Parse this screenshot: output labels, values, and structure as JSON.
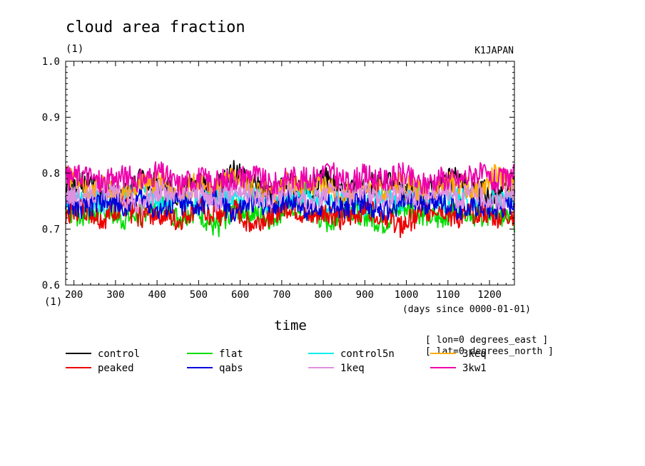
{
  "chart_data": {
    "type": "line",
    "title": "cloud area fraction",
    "units": "(1)",
    "ylabel_unit": "(1)",
    "dataset_label": "K1JAPAN",
    "xlabel": "time",
    "x_units": "(days since 0000-01-01)",
    "xlim": [
      180,
      1260
    ],
    "ylim": [
      0.6,
      1.0
    ],
    "x_ticks": [
      200,
      300,
      400,
      500,
      600,
      700,
      800,
      900,
      1000,
      1100,
      1200
    ],
    "x_tick_labels": [
      "200",
      "300",
      "400",
      "500",
      "600",
      "700",
      "800",
      "900",
      "1000",
      "1100",
      "1200"
    ],
    "y_ticks": [
      0.6,
      0.7,
      0.8,
      0.9,
      1.0
    ],
    "y_tick_labels": [
      "0.6",
      "0.7",
      "0.8",
      "0.9",
      "1.0"
    ],
    "grid": false,
    "legend_position": "bottom",
    "annotations": [
      "[ lon=0 degrees_east ]",
      "[ lat=0 degrees_north ]"
    ],
    "series": [
      {
        "name": "control",
        "color": "#000000",
        "mean": 0.768,
        "amplitude": 0.042,
        "values": [
          0.772,
          0.781,
          0.769,
          0.758,
          0.79,
          0.776,
          0.763,
          0.785,
          0.771,
          0.802,
          0.78,
          0.76,
          0.779,
          0.768,
          0.791,
          0.762,
          0.774,
          0.788,
          0.766,
          0.757,
          0.778,
          0.793,
          0.77,
          0.761,
          0.784
        ]
      },
      {
        "name": "flat",
        "color": "#00dd00",
        "mean": 0.728,
        "amplitude": 0.038,
        "values": [
          0.731,
          0.722,
          0.74,
          0.715,
          0.728,
          0.745,
          0.719,
          0.733,
          0.7,
          0.738,
          0.726,
          0.717,
          0.742,
          0.73,
          0.711,
          0.736,
          0.724,
          0.708,
          0.739,
          0.727,
          0.714,
          0.743,
          0.721,
          0.732,
          0.712
        ]
      },
      {
        "name": "control5n",
        "color": "#00eeee",
        "mean": 0.752,
        "amplitude": 0.035,
        "values": [
          0.751,
          0.763,
          0.744,
          0.758,
          0.77,
          0.747,
          0.756,
          0.741,
          0.765,
          0.752,
          0.76,
          0.738,
          0.754,
          0.768,
          0.746,
          0.757,
          0.742,
          0.762,
          0.749,
          0.771,
          0.745,
          0.758,
          0.74,
          0.755,
          0.748
        ]
      },
      {
        "name": "3keq",
        "color": "#ffaa00",
        "mean": 0.772,
        "amplitude": 0.04,
        "values": [
          0.795,
          0.768,
          0.782,
          0.76,
          0.776,
          0.788,
          0.765,
          0.78,
          0.771,
          0.792,
          0.774,
          0.763,
          0.786,
          0.77,
          0.779,
          0.761,
          0.783,
          0.769,
          0.79,
          0.766,
          0.777,
          0.784,
          0.762,
          0.798,
          0.773
        ]
      },
      {
        "name": "peaked",
        "color": "#ee0000",
        "mean": 0.727,
        "amplitude": 0.038,
        "values": [
          0.728,
          0.736,
          0.716,
          0.741,
          0.722,
          0.73,
          0.712,
          0.738,
          0.724,
          0.733,
          0.708,
          0.727,
          0.74,
          0.719,
          0.731,
          0.714,
          0.737,
          0.725,
          0.703,
          0.729,
          0.739,
          0.718,
          0.732,
          0.72,
          0.726
        ]
      },
      {
        "name": "qabs",
        "color": "#0000dd",
        "mean": 0.742,
        "amplitude": 0.036,
        "values": [
          0.744,
          0.735,
          0.751,
          0.739,
          0.757,
          0.731,
          0.746,
          0.738,
          0.752,
          0.729,
          0.748,
          0.741,
          0.755,
          0.733,
          0.745,
          0.737,
          0.75,
          0.728,
          0.747,
          0.74,
          0.754,
          0.734,
          0.743,
          0.736,
          0.749
        ]
      },
      {
        "name": "1keq",
        "color": "#e090e0",
        "mean": 0.762,
        "amplitude": 0.038,
        "values": [
          0.766,
          0.752,
          0.774,
          0.76,
          0.738,
          0.771,
          0.758,
          0.768,
          0.749,
          0.776,
          0.761,
          0.755,
          0.77,
          0.746,
          0.765,
          0.759,
          0.773,
          0.751,
          0.767,
          0.757,
          0.772,
          0.754,
          0.764,
          0.748,
          0.769
        ]
      },
      {
        "name": "3kw1",
        "color": "#ee00aa",
        "mean": 0.787,
        "amplitude": 0.04,
        "values": [
          0.79,
          0.798,
          0.781,
          0.795,
          0.786,
          0.802,
          0.779,
          0.793,
          0.784,
          0.791,
          0.8,
          0.776,
          0.794,
          0.788,
          0.805,
          0.782,
          0.796,
          0.785,
          0.799,
          0.778,
          0.792,
          0.787,
          0.801,
          0.783,
          0.797
        ]
      }
    ]
  }
}
